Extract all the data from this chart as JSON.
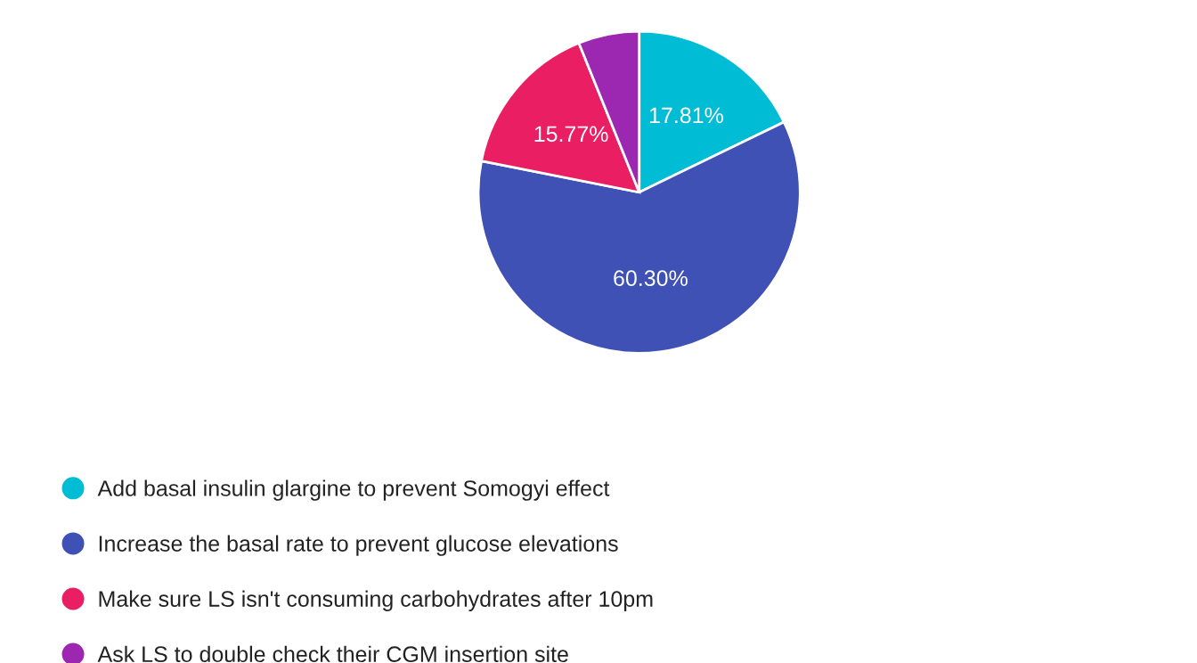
{
  "chart_data": {
    "type": "pie",
    "categories": [
      "Add basal insulin glargine to prevent Somogyi effect",
      "Increase the basal rate to prevent glucose elevations",
      "Make sure LS isn't consuming carbohydrates after 10pm",
      "Ask LS to double check their CGM insertion site"
    ],
    "values": [
      17.81,
      60.3,
      15.77,
      6.12
    ],
    "colors": [
      "#00bcd4",
      "#3f51b5",
      "#e91e63",
      "#9c27b0"
    ],
    "value_labels": [
      "17.81%",
      "60.30%",
      "15.77%",
      null
    ],
    "legend": "bottom"
  }
}
